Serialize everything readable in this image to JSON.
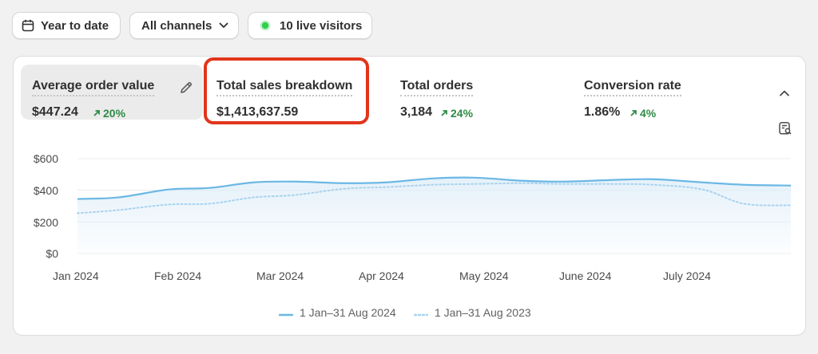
{
  "filters": {
    "date_range": "Year to date",
    "channels": "All channels",
    "live_visitors": "10 live visitors"
  },
  "metrics": [
    {
      "label": "Average order value",
      "value": "$447.24",
      "trend": "20%"
    },
    {
      "label": "Total sales breakdown",
      "value": "$1,413,637.59"
    },
    {
      "label": "Total orders",
      "value": "3,184",
      "trend": "24%"
    },
    {
      "label": "Conversion rate",
      "value": "1.86%",
      "trend": "4%"
    }
  ],
  "colors": {
    "current_series": "#6bb8e4",
    "previous_series": "#a9d3ef",
    "trend_up": "#2f8a46",
    "highlight": "#e1351b"
  },
  "chart_data": {
    "type": "line",
    "y_ticks": [
      "$600",
      "$400",
      "$200",
      "$0"
    ],
    "ylim": [
      0,
      600
    ],
    "x_ticks": [
      "Jan 2024",
      "Feb 2024",
      "Mar 2024",
      "Apr 2024",
      "May 2024",
      "June 2024",
      "July 2024"
    ],
    "series": [
      {
        "name": "1 Jan–31 Aug 2024",
        "style": "solid",
        "x": [
          "2024-01-01",
          "2024-01-15",
          "2024-02-01",
          "2024-02-15",
          "2024-03-01",
          "2024-03-15",
          "2024-04-01",
          "2024-04-15",
          "2024-05-01",
          "2024-05-15",
          "2024-06-01",
          "2024-06-15",
          "2024-07-01",
          "2024-07-15",
          "2024-08-01",
          "2024-08-15",
          "2024-08-31"
        ],
        "values": [
          345,
          355,
          405,
          415,
          450,
          455,
          445,
          450,
          475,
          480,
          460,
          455,
          465,
          470,
          450,
          435,
          430
        ]
      },
      {
        "name": "1 Jan–31 Aug 2023",
        "style": "dotted",
        "x": [
          "2024-01-01",
          "2024-01-15",
          "2024-02-01",
          "2024-02-15",
          "2024-03-01",
          "2024-03-15",
          "2024-04-01",
          "2024-04-15",
          "2024-05-01",
          "2024-05-15",
          "2024-06-01",
          "2024-06-15",
          "2024-07-01",
          "2024-07-15",
          "2024-08-01",
          "2024-08-15",
          "2024-08-31"
        ],
        "values": [
          255,
          275,
          310,
          315,
          355,
          370,
          410,
          420,
          435,
          440,
          445,
          440,
          440,
          435,
          405,
          315,
          305
        ]
      }
    ],
    "grid": true,
    "legend_position": "bottom-center"
  }
}
